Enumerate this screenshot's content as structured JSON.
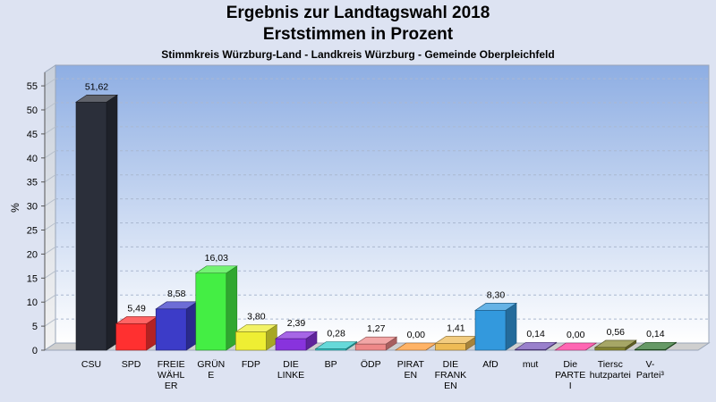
{
  "chart_data": {
    "type": "bar",
    "title": "Ergebnis zur Landtagswahl 2018",
    "title_line2": "Erststimmen in Prozent",
    "subtitle": "Stimmkreis Würzburg-Land - Landkreis Würzburg - Gemeinde Oberpleichfeld",
    "ylabel": "%",
    "ylim": [
      0,
      57.6
    ],
    "yticks": [
      0,
      5,
      10,
      15,
      20,
      25,
      30,
      35,
      40,
      45,
      50,
      55
    ],
    "grid": true,
    "categories": [
      [
        "CSU"
      ],
      [
        "SPD"
      ],
      [
        "FREIE",
        "WÄHL",
        "ER"
      ],
      [
        "GRÜN",
        "E"
      ],
      [
        "FDP"
      ],
      [
        "DIE",
        "LINKE"
      ],
      [
        "BP"
      ],
      [
        "ÖDP"
      ],
      [
        "PIRAT",
        "EN"
      ],
      [
        "DIE",
        "FRANK",
        "EN"
      ],
      [
        "AfD"
      ],
      [
        "mut"
      ],
      [
        "Die",
        "PARTE",
        "I"
      ],
      [
        "Tiersc",
        "hutzpartei"
      ],
      [
        "V-",
        "Partei³"
      ]
    ],
    "values": [
      51.62,
      5.49,
      8.58,
      16.03,
      3.8,
      2.39,
      0.28,
      1.27,
      0.0,
      1.41,
      8.3,
      0.14,
      0.0,
      0.56,
      0.14
    ],
    "value_labels": [
      "51,62",
      "5,49",
      "8,58",
      "16,03",
      "3,80",
      "2,39",
      "0,28",
      "1,27",
      "0,00",
      "1,41",
      "8,30",
      "0,14",
      "0,00",
      "0,56",
      "0,14"
    ],
    "colors": [
      "#2b2f3a",
      "#ff3030",
      "#3c3cc8",
      "#44ee44",
      "#eeee33",
      "#8833dd",
      "#33cccc",
      "#ee8888",
      "#ff9933",
      "#eebb55",
      "#3399dd",
      "#7755bb",
      "#ff3399",
      "#888833",
      "#337733"
    ]
  }
}
